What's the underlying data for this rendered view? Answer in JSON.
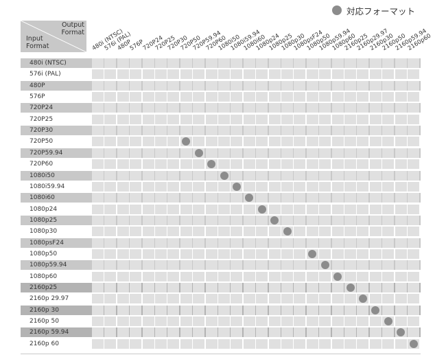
{
  "legend": {
    "label": "対応フォーマット",
    "dot_color": "#8c8c8c"
  },
  "header": {
    "output_label": "Output\nFormat",
    "input_label": "Input\nFormat"
  },
  "output_formats": [
    "480i (NTSC)",
    "576i (PAL)",
    "480P",
    "576P",
    "720P24",
    "720P25",
    "720P30",
    "720P50",
    "720P59.94",
    "720P60",
    "1080i50",
    "1080i59.94",
    "1080i60",
    "1080p24",
    "1080p25",
    "1080p30",
    "1080psF24",
    "1080p50",
    "1080p59.94",
    "1080p60",
    "2160p25",
    "2160p29.97",
    "2160p30",
    "2160p50",
    "2160p59.94",
    "2160p60"
  ],
  "input_formats": [
    "480i (NTSC)",
    "576i (PAL)",
    "480P",
    "576P",
    "720P24",
    "720P25",
    "720P30",
    "720P50",
    "720P59.94",
    "720P60",
    "1080i50",
    "1080i59.94",
    "1080i60",
    "1080p24",
    "1080p25",
    "1080p30",
    "1080psF24",
    "1080p50",
    "1080p59.94",
    "1080p60",
    "2160p25",
    "2160p 29.97",
    "2160p 30",
    "2160p 50",
    "2160p 59.94",
    "2160p 60"
  ],
  "supported": [
    [
      7,
      7
    ],
    [
      8,
      8
    ],
    [
      9,
      9
    ],
    [
      10,
      10
    ],
    [
      11,
      11
    ],
    [
      12,
      12
    ],
    [
      13,
      13
    ],
    [
      14,
      14
    ],
    [
      15,
      15
    ],
    [
      17,
      17
    ],
    [
      18,
      18
    ],
    [
      19,
      19
    ],
    [
      20,
      20
    ],
    [
      21,
      21
    ],
    [
      22,
      22
    ],
    [
      23,
      23
    ],
    [
      24,
      24
    ],
    [
      25,
      25
    ]
  ],
  "colors": {
    "row_gray": "#c8c8c8",
    "row_dark": "#b3b3b3",
    "cell": "#e0e0e0",
    "text": "#333333"
  }
}
